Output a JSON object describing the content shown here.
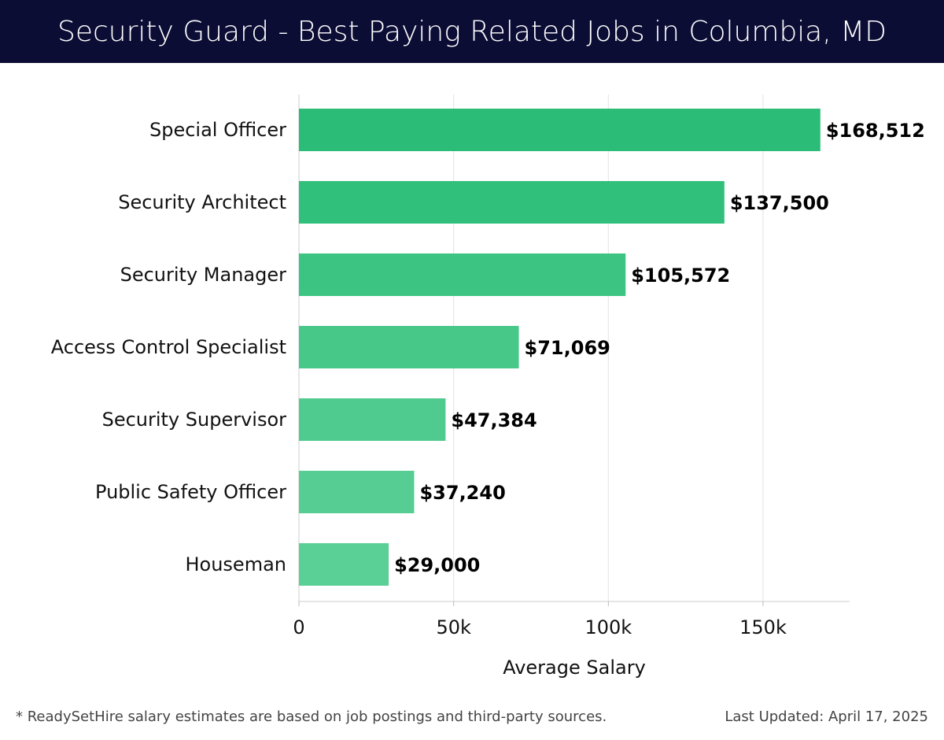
{
  "header": {
    "title": "Security Guard - Best Paying Related Jobs in Columbia, MD"
  },
  "chart_data": {
    "type": "bar",
    "orientation": "horizontal",
    "title": "Security Guard - Best Paying Related Jobs in Columbia, MD",
    "xlabel": "Average Salary",
    "ylabel": "",
    "categories": [
      "Special Officer",
      "Security Architect",
      "Security Manager",
      "Access Control Specialist",
      "Security Supervisor",
      "Public Safety Officer",
      "Houseman"
    ],
    "values": [
      168512,
      137500,
      105572,
      71069,
      47384,
      37240,
      29000
    ],
    "value_labels": [
      "$168,512",
      "$137,500",
      "$105,572",
      "$71,069",
      "$47,384",
      "$37,240",
      "$29,000"
    ],
    "xlim": [
      0,
      177000
    ],
    "x_ticks": [
      0,
      50000,
      100000,
      150000
    ],
    "x_tick_labels": [
      "0",
      "50k",
      "100k",
      "150k"
    ],
    "grid": true,
    "bar_colors": [
      "#2bbc77",
      "#31c07c",
      "#3cc482",
      "#47c889",
      "#4fcb8f",
      "#56cd93",
      "#5acf96"
    ]
  },
  "footer": {
    "note": "* ReadySetHire salary estimates are based on job postings and third-party sources.",
    "updated": "Last Updated: April 17, 2025"
  }
}
